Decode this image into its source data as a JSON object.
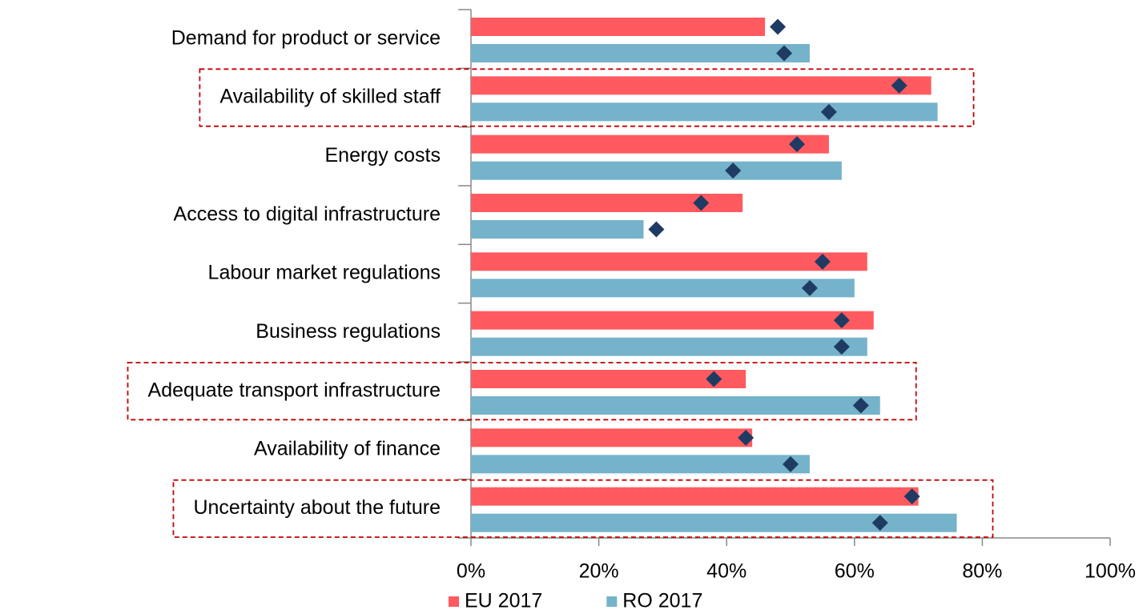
{
  "chart_data": {
    "type": "bar",
    "orientation": "horizontal",
    "categories": [
      "Demand for product or service",
      "Availability of skilled staff",
      "Energy costs",
      "Access to digital infrastructure",
      "Labour market regulations",
      "Business regulations",
      "Adequate transport infrastructure",
      "Availability of finance",
      "Uncertainty about the future"
    ],
    "series": [
      {
        "name": "EU 2017",
        "color": "#ff5a5f",
        "values": [
          46,
          72,
          56,
          42.5,
          62,
          63,
          43,
          44,
          70
        ]
      },
      {
        "name": "RO 2017",
        "color": "#74b3c9",
        "values": [
          53,
          73,
          58,
          27,
          60,
          62,
          64,
          53,
          76
        ]
      },
      {
        "type": "marker",
        "color": "#1f3b63",
        "values": [
          48,
          67,
          51,
          36,
          55,
          58,
          38,
          43,
          69
        ]
      },
      {
        "type": "marker",
        "color": "#1f3b63",
        "values": [
          49,
          56,
          41,
          29,
          53,
          58,
          61,
          50,
          64
        ]
      }
    ],
    "highlighted": [
      1,
      6,
      8
    ],
    "xlim": [
      0,
      100
    ],
    "xticks": [
      {
        "value": 0,
        "label": "0%"
      },
      {
        "value": 20,
        "label": "20%"
      },
      {
        "value": 40,
        "label": "40%"
      },
      {
        "value": 60,
        "label": "60%"
      },
      {
        "value": 80,
        "label": "80%"
      },
      {
        "value": 100,
        "label": "100%"
      }
    ],
    "legend": "bottom"
  }
}
